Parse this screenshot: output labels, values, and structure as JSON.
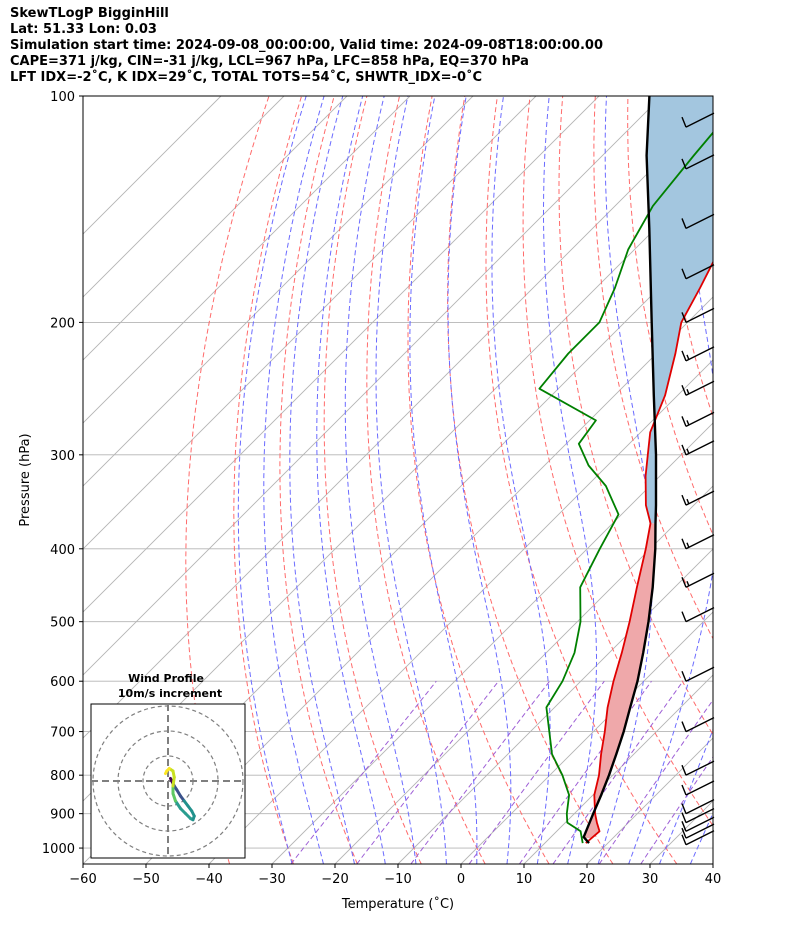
{
  "header": {
    "line1": "SkewTLogP BigginHill",
    "line2": "Lat: 51.33   Lon: 0.03",
    "line3": "Simulation start time: 2024-09-08_00:00:00, Valid time: 2024-09-08T18:00:00.00",
    "line4": "CAPE=371 j/kg, CIN=-31 j/kg, LCL=967 hPa, LFC=858 hPa, EQ=370 hPa",
    "line5": "LFT IDX=-2˚C, K IDX=29˚C, TOTAL TOTS=54˚C, SHWTR_IDX=-0˚C"
  },
  "chart_data": {
    "type": "line",
    "subtype": "skew-t log-p",
    "xlabel": "Temperature (˚C)",
    "ylabel": "Pressure (hPa)",
    "xlim": [
      -60,
      40
    ],
    "ylim": [
      1050,
      100
    ],
    "y_scale": "log",
    "x_ticks": [
      "−60",
      "−50",
      "−40",
      "−30",
      "−20",
      "−10",
      "0",
      "10",
      "20",
      "30",
      "40"
    ],
    "y_ticks": [
      "100",
      "200",
      "300",
      "400",
      "500",
      "600",
      "700",
      "800",
      "900",
      "1000"
    ],
    "grid": true,
    "colors": {
      "temperature": "#e00000",
      "dewpoint": "#008000",
      "parcel": "#000000",
      "cape": "#a3c6df",
      "cin": "#efa8aa",
      "dry_adiabat": "#ff6b6b",
      "moist_adiabat": "#6b6bff",
      "mixing_ratio": "#9e5fd6",
      "isotherm": "#b4b4b4"
    },
    "temperature_profile": [
      {
        "p": 985,
        "t": 16.5
      },
      {
        "p": 950,
        "t": 16.8
      },
      {
        "p": 925,
        "t": 15.0
      },
      {
        "p": 900,
        "t": 13.3
      },
      {
        "p": 850,
        "t": 10.2
      },
      {
        "p": 800,
        "t": 7.8
      },
      {
        "p": 750,
        "t": 4.8
      },
      {
        "p": 700,
        "t": 1.8
      },
      {
        "p": 650,
        "t": -1.6
      },
      {
        "p": 600,
        "t": -4.8
      },
      {
        "p": 550,
        "t": -8.0
      },
      {
        "p": 500,
        "t": -11.7
      },
      {
        "p": 450,
        "t": -16.0
      },
      {
        "p": 400,
        "t": -20.7
      },
      {
        "p": 370,
        "t": -24.0
      },
      {
        "p": 350,
        "t": -27.6
      },
      {
        "p": 320,
        "t": -32.3
      },
      {
        "p": 300,
        "t": -35.3
      },
      {
        "p": 280,
        "t": -38.5
      },
      {
        "p": 250,
        "t": -42.0
      },
      {
        "p": 220,
        "t": -47.0
      },
      {
        "p": 200,
        "t": -51.0
      },
      {
        "p": 180,
        "t": -53.5
      },
      {
        "p": 160,
        "t": -56.5
      },
      {
        "p": 150,
        "t": -57.5
      },
      {
        "p": 130,
        "t": -57.0
      },
      {
        "p": 110,
        "t": -56.5
      },
      {
        "p": 100,
        "t": -55.0
      }
    ],
    "dewpoint_profile": [
      {
        "p": 985,
        "t": 16.0
      },
      {
        "p": 950,
        "t": 13.8
      },
      {
        "p": 925,
        "t": 10.3
      },
      {
        "p": 900,
        "t": 8.8
      },
      {
        "p": 850,
        "t": 6.2
      },
      {
        "p": 800,
        "t": 2.0
      },
      {
        "p": 750,
        "t": -3.0
      },
      {
        "p": 700,
        "t": -7.0
      },
      {
        "p": 650,
        "t": -11.3
      },
      {
        "p": 600,
        "t": -12.9
      },
      {
        "p": 550,
        "t": -15.5
      },
      {
        "p": 500,
        "t": -19.5
      },
      {
        "p": 450,
        "t": -25.0
      },
      {
        "p": 400,
        "t": -28.0
      },
      {
        "p": 360,
        "t": -30.5
      },
      {
        "p": 330,
        "t": -37.0
      },
      {
        "p": 310,
        "t": -43.0
      },
      {
        "p": 290,
        "t": -48.0
      },
      {
        "p": 270,
        "t": -49.0
      },
      {
        "p": 245,
        "t": -63.0
      },
      {
        "p": 220,
        "t": -64.0
      },
      {
        "p": 200,
        "t": -64.0
      },
      {
        "p": 180,
        "t": -67.0
      },
      {
        "p": 160,
        "t": -71.0
      },
      {
        "p": 140,
        "t": -74.0
      },
      {
        "p": 120,
        "t": -75.5
      },
      {
        "p": 100,
        "t": -77.0
      }
    ],
    "parcel_profile": [
      {
        "p": 985,
        "t": 17.0
      },
      {
        "p": 967,
        "t": 15.2
      },
      {
        "p": 900,
        "t": 13.0
      },
      {
        "p": 850,
        "t": 11.3
      },
      {
        "p": 800,
        "t": 9.4
      },
      {
        "p": 750,
        "t": 7.2
      },
      {
        "p": 700,
        "t": 4.8
      },
      {
        "p": 650,
        "t": 2.0
      },
      {
        "p": 600,
        "t": -1.0
      },
      {
        "p": 550,
        "t": -4.6
      },
      {
        "p": 500,
        "t": -8.7
      },
      {
        "p": 450,
        "t": -13.5
      },
      {
        "p": 400,
        "t": -19.2
      },
      {
        "p": 370,
        "t": -23.2
      },
      {
        "p": 350,
        "t": -26.0
      },
      {
        "p": 300,
        "t": -34.0
      },
      {
        "p": 250,
        "t": -43.8
      },
      {
        "p": 200,
        "t": -55.7
      },
      {
        "p": 150,
        "t": -71.0
      },
      {
        "p": 120,
        "t": -83.0
      },
      {
        "p": 100,
        "t": -92.0
      }
    ],
    "wind_barbs": [
      {
        "p": 990,
        "speed_kt": 10
      },
      {
        "p": 970,
        "speed_kt": 10
      },
      {
        "p": 950,
        "speed_kt": 10
      },
      {
        "p": 925,
        "speed_kt": 10
      },
      {
        "p": 900,
        "speed_kt": 10
      },
      {
        "p": 850,
        "speed_kt": 10
      },
      {
        "p": 800,
        "speed_kt": 10
      },
      {
        "p": 700,
        "speed_kt": 10
      },
      {
        "p": 600,
        "speed_kt": 10
      },
      {
        "p": 500,
        "speed_kt": 10
      },
      {
        "p": 450,
        "speed_kt": 15
      },
      {
        "p": 400,
        "speed_kt": 15
      },
      {
        "p": 350,
        "speed_kt": 15
      },
      {
        "p": 300,
        "speed_kt": 15
      },
      {
        "p": 275,
        "speed_kt": 15
      },
      {
        "p": 250,
        "speed_kt": 15
      },
      {
        "p": 225,
        "speed_kt": 15
      },
      {
        "p": 200,
        "speed_kt": 10
      },
      {
        "p": 175,
        "speed_kt": 10
      },
      {
        "p": 150,
        "speed_kt": 10
      },
      {
        "p": 125,
        "speed_kt": 10
      },
      {
        "p": 110,
        "speed_kt": 10
      }
    ],
    "inset": {
      "title": "Wind Profile",
      "subtitle": "10m/s increment",
      "hodograph": [
        [
          1.0,
          1.0
        ],
        [
          1.5,
          0.0
        ],
        [
          2.0,
          -1.0
        ],
        [
          2.5,
          -2.0
        ],
        [
          3.5,
          -3.5
        ],
        [
          5.0,
          -6.0
        ],
        [
          6.5,
          -8.0
        ],
        [
          8.0,
          -10.0
        ],
        [
          9.5,
          -12.0
        ],
        [
          10.5,
          -14.0
        ],
        [
          10.0,
          -15.5
        ],
        [
          9.0,
          -15.0
        ],
        [
          7.0,
          -13.0
        ],
        [
          5.0,
          -11.0
        ],
        [
          3.0,
          -8.0
        ],
        [
          2.0,
          -5.0
        ],
        [
          2.0,
          -2.0
        ],
        [
          2.5,
          1.5
        ],
        [
          2.0,
          4.0
        ],
        [
          0.5,
          5.0
        ],
        [
          -0.5,
          4.0
        ],
        [
          -1.0,
          3.0
        ]
      ]
    }
  }
}
